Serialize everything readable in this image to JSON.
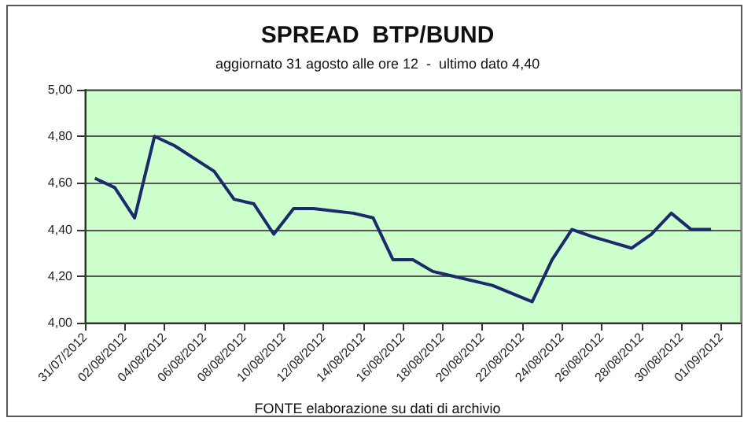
{
  "chart_data": {
    "type": "line",
    "title": "SPREAD  BTP/BUND",
    "subtitle": "aggiornato 31 agosto alle ore 12  -  ultimo dato 4,40",
    "annotations": [
      "FONTE elaborazione su dati di archivio"
    ],
    "x": [
      "2012-07-31T12:00",
      "2012-08-01T12:00",
      "2012-08-02T12:00",
      "2012-08-03T12:00",
      "2012-08-04T12:00",
      "2012-08-06T12:00",
      "2012-08-07T12:00",
      "2012-08-08T12:00",
      "2012-08-09T12:00",
      "2012-08-10T12:00",
      "2012-08-11T12:00",
      "2012-08-12T12:00",
      "2012-08-13T12:00",
      "2012-08-14T12:00",
      "2012-08-15T12:00",
      "2012-08-16T12:00",
      "2012-08-17T12:00",
      "2012-08-18T12:00",
      "2012-08-20T12:00",
      "2012-08-22T12:00",
      "2012-08-23T12:00",
      "2012-08-24T12:00",
      "2012-08-25T12:00",
      "2012-08-27T12:00",
      "2012-08-28T12:00",
      "2012-08-29T12:00",
      "2012-08-30T12:00",
      "2012-08-31T12:00"
    ],
    "series": [
      {
        "color": "#1b2a6b",
        "values": [
          4.62,
          4.58,
          4.45,
          4.8,
          4.76,
          4.65,
          4.53,
          4.51,
          4.38,
          4.49,
          4.49,
          4.48,
          4.47,
          4.45,
          4.27,
          4.27,
          4.22,
          4.2,
          4.16,
          4.09,
          4.27,
          4.4,
          4.37,
          4.32,
          4.38,
          4.47,
          4.4,
          4.4
        ]
      }
    ],
    "xlim": [
      "2012-07-31",
      "2012-09-02"
    ],
    "xticks": [
      {
        "value": "2012-07-31",
        "label": "31/07/2012"
      },
      {
        "value": "2012-08-02",
        "label": "02/08/2012"
      },
      {
        "value": "2012-08-04",
        "label": "04/08/2012"
      },
      {
        "value": "2012-08-06",
        "label": "06/08/2012"
      },
      {
        "value": "2012-08-08",
        "label": "08/08/2012"
      },
      {
        "value": "2012-08-10",
        "label": "10/08/2012"
      },
      {
        "value": "2012-08-12",
        "label": "12/08/2012"
      },
      {
        "value": "2012-08-14",
        "label": "14/08/2012"
      },
      {
        "value": "2012-08-16",
        "label": "16/08/2012"
      },
      {
        "value": "2012-08-18",
        "label": "18/08/2012"
      },
      {
        "value": "2012-08-20",
        "label": "20/08/2012"
      },
      {
        "value": "2012-08-22",
        "label": "22/08/2012"
      },
      {
        "value": "2012-08-24",
        "label": "24/08/2012"
      },
      {
        "value": "2012-08-26",
        "label": "26/08/2012"
      },
      {
        "value": "2012-08-28",
        "label": "28/08/2012"
      },
      {
        "value": "2012-08-30",
        "label": "30/08/2012"
      },
      {
        "value": "2012-09-01",
        "label": "01/09/2012"
      }
    ],
    "ylim": [
      4,
      5
    ],
    "yticks": [
      {
        "value": 4,
        "label": "4,00"
      },
      {
        "value": 4.2,
        "label": "4,20"
      },
      {
        "value": 4.4,
        "label": "4,40"
      },
      {
        "value": 4.6,
        "label": "4,60"
      },
      {
        "value": 4.8,
        "label": "4,80"
      },
      {
        "value": 5,
        "label": "5,00"
      }
    ],
    "grid": "y",
    "marker": "none",
    "line_style": "solid"
  }
}
